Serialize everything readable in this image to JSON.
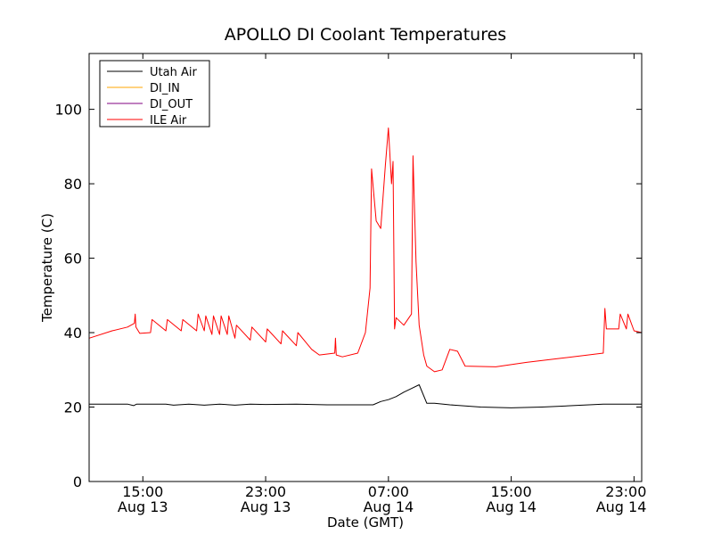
{
  "chart_data": {
    "type": "line",
    "title": "APOLLO DI Coolant Temperatures",
    "xlabel": "Date (GMT)",
    "ylabel": "Temperature (C)",
    "ylim": [
      0,
      115
    ],
    "yticks": [
      0,
      20,
      40,
      60,
      80,
      100
    ],
    "xlim_hours": [
      11.5,
      47.5
    ],
    "xticks": [
      {
        "hour": 15,
        "time": "15:00",
        "date": "Aug 13"
      },
      {
        "hour": 23,
        "time": "23:00",
        "date": "Aug 13"
      },
      {
        "hour": 31,
        "time": "07:00",
        "date": "Aug 14"
      },
      {
        "hour": 39,
        "time": "15:00",
        "date": "Aug 14"
      },
      {
        "hour": 47,
        "time": "23:00",
        "date": "Aug 14"
      }
    ],
    "grid": false,
    "legend_position": "top-left",
    "series": [
      {
        "name": "Utah Air",
        "color": "#000000",
        "x": [
          11.5,
          14.0,
          14.4,
          14.6,
          15.5,
          16.5,
          17.0,
          18.0,
          19.0,
          20.0,
          21.0,
          22.0,
          23.0,
          25.0,
          27.0,
          29.0,
          30.0,
          30.5,
          31.0,
          31.5,
          32.0,
          32.5,
          33.0,
          33.5,
          34.0,
          35.0,
          37.0,
          39.0,
          41.0,
          43.0,
          45.0,
          47.5
        ],
        "y": [
          20.8,
          20.8,
          20.4,
          20.8,
          20.8,
          20.8,
          20.5,
          20.8,
          20.5,
          20.8,
          20.5,
          20.8,
          20.7,
          20.8,
          20.6,
          20.6,
          20.6,
          21.5,
          22.0,
          22.8,
          24.0,
          25.0,
          26.0,
          21.0,
          21.0,
          20.6,
          20.0,
          19.8,
          20.0,
          20.4,
          20.8,
          20.8
        ]
      },
      {
        "name": "DI_IN",
        "color": "#ffa500",
        "x": [],
        "y": []
      },
      {
        "name": "DI_OUT",
        "color": "#800080",
        "x": [],
        "y": []
      },
      {
        "name": "ILE Air",
        "color": "#ff0000",
        "x": [
          11.5,
          13.0,
          14.0,
          14.45,
          14.5,
          14.55,
          14.8,
          15.5,
          15.6,
          16.5,
          16.6,
          17.5,
          17.6,
          18.5,
          18.6,
          19.0,
          19.1,
          19.5,
          19.6,
          20.0,
          20.1,
          20.5,
          20.6,
          21.0,
          21.1,
          22.0,
          22.1,
          23.0,
          23.1,
          24.0,
          24.1,
          25.0,
          25.1,
          26.0,
          26.5,
          27.5,
          27.55,
          27.6,
          28.0,
          29.0,
          29.5,
          29.8,
          29.9,
          30.2,
          30.5,
          30.8,
          31.0,
          31.2,
          31.3,
          31.4,
          31.5,
          32.0,
          32.5,
          32.6,
          32.8,
          33.0,
          33.3,
          33.5,
          34.0,
          34.5,
          35.0,
          35.5,
          36.0,
          38.0,
          40.0,
          42.0,
          44.0,
          45.0,
          45.1,
          45.2,
          46.0,
          46.1,
          46.5,
          46.6,
          47.0,
          47.5
        ],
        "y": [
          38.5,
          40.5,
          41.5,
          42.5,
          45.0,
          41.5,
          39.8,
          40.0,
          43.5,
          40.5,
          43.5,
          40.5,
          43.5,
          40.5,
          45.0,
          40.5,
          44.5,
          39.5,
          44.5,
          39.5,
          44.5,
          39.5,
          44.5,
          38.5,
          42.0,
          38.0,
          41.5,
          37.5,
          41.0,
          37.0,
          40.5,
          36.5,
          40.0,
          35.5,
          34.0,
          34.5,
          38.5,
          34.0,
          33.5,
          34.5,
          40.0,
          52.0,
          84.0,
          70.0,
          68.0,
          85.0,
          95.0,
          80.0,
          86.0,
          41.0,
          44.0,
          42.0,
          45.0,
          87.5,
          59.0,
          42.0,
          34.0,
          31.0,
          29.5,
          30.0,
          35.5,
          35.0,
          31.0,
          30.8,
          32.0,
          33.0,
          34.0,
          34.5,
          46.5,
          41.0,
          41.0,
          45.0,
          41.0,
          45.0,
          40.5,
          40.0
        ]
      }
    ]
  }
}
